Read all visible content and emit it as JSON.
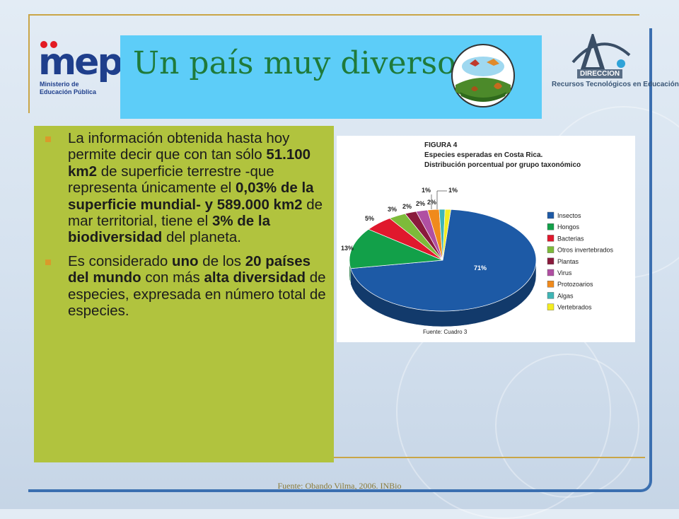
{
  "header": {
    "title": "Un país muy diverso",
    "mep_logo": {
      "word": "mep",
      "line1": "Ministerio de",
      "line2": "Educación Pública"
    },
    "dir_logo": {
      "line1": "DIRECCION",
      "line2": "Recursos Tecnológicos en Educación"
    },
    "emblem_icon": "bird-emblem-icon"
  },
  "bullets": [
    {
      "parts": [
        {
          "t": "La información obtenida hasta hoy permite decir que con tan sólo ",
          "b": false
        },
        {
          "t": "51.100 km2",
          "b": true
        },
        {
          "t": " de superficie terrestre -que representa únicamente el ",
          "b": false
        },
        {
          "t": "0,03% de la superficie mundial- y 589.000 km2",
          "b": true
        },
        {
          "t": " de mar territorial, tiene el ",
          "b": false
        },
        {
          "t": "3% de la biodiversidad",
          "b": true
        },
        {
          "t": " del planeta.",
          "b": false
        }
      ]
    },
    {
      "parts": [
        {
          "t": "Es considerado ",
          "b": false
        },
        {
          "t": "uno",
          "b": true
        },
        {
          "t": " de los ",
          "b": false
        },
        {
          "t": "20 países del mundo",
          "b": true
        },
        {
          "t": " con más ",
          "b": false
        },
        {
          "t": "alta diversidad",
          "b": true
        },
        {
          "t": " de especies, expresada en número total de especies.",
          "b": false
        }
      ]
    }
  ],
  "chart_data": {
    "type": "pie",
    "figure_label": "FIGURA 4",
    "title": "Especies esperadas en Costa Rica.",
    "subtitle": "Distribución porcentual por grupo taxonómico",
    "source_note": "Fuente: Cuadro 3",
    "legend_position": "right",
    "categories": [
      "Insectos",
      "Hongos",
      "Bacterias",
      "Otros invertebrados",
      "Plantas",
      "Virus",
      "Protozoarios",
      "Algas",
      "Vertebrados"
    ],
    "values": [
      71,
      13,
      5,
      3,
      2,
      2,
      2,
      1,
      1
    ],
    "labels": [
      "71%",
      "13%",
      "5%",
      "3%",
      "2%",
      "2%",
      "2%",
      "1%",
      "1%"
    ],
    "colors": [
      "#1d5aa6",
      "#12a049",
      "#e0182d",
      "#7dbb3a",
      "#8a1a3c",
      "#b04fa2",
      "#f08a1c",
      "#3fb5b5",
      "#f3ec1f"
    ]
  },
  "footer": {
    "source": "Fuente: Obando Vilma, 2006. INBio"
  }
}
